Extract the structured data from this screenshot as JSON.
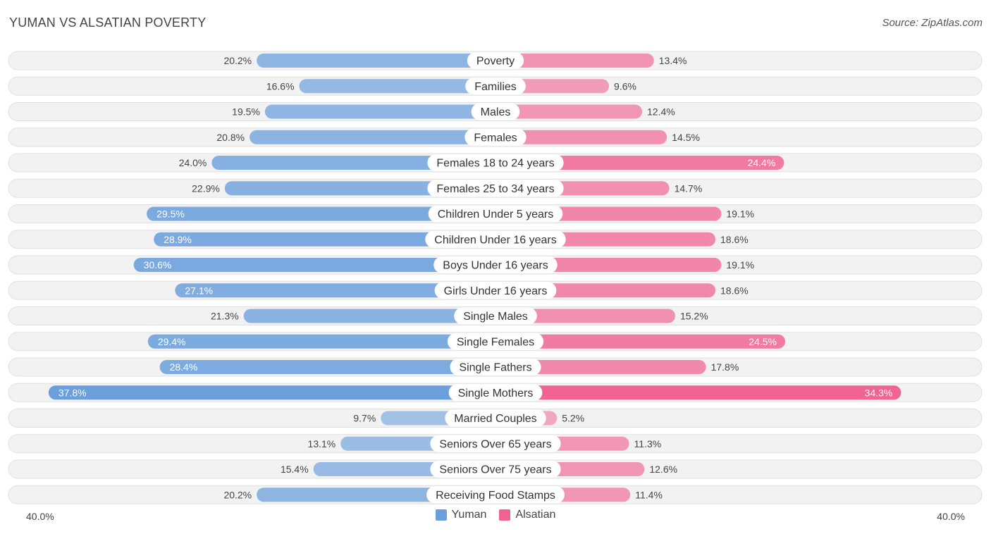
{
  "chart_data": {
    "type": "bar",
    "orientation": "horizontal-diverging",
    "title": "YUMAN VS ALSATIAN POVERTY",
    "source": "Source: ZipAtlas.com",
    "categories": [
      "Poverty",
      "Families",
      "Males",
      "Females",
      "Females 18 to 24 years",
      "Females 25 to 34 years",
      "Children Under 5 years",
      "Children Under 16 years",
      "Boys Under 16 years",
      "Girls Under 16 years",
      "Single Males",
      "Single Females",
      "Single Fathers",
      "Single Mothers",
      "Married Couples",
      "Seniors Over 65 years",
      "Seniors Over 75 years",
      "Receiving Food Stamps"
    ],
    "series": [
      {
        "name": "Yuman",
        "side": "left",
        "color": "#6a9fdc",
        "values": [
          20.2,
          16.6,
          19.5,
          20.8,
          24.0,
          22.9,
          29.5,
          28.9,
          30.6,
          27.1,
          21.3,
          29.4,
          28.4,
          37.8,
          9.7,
          13.1,
          15.4,
          20.2
        ],
        "labels": [
          "20.2%",
          "16.6%",
          "19.5%",
          "20.8%",
          "24.0%",
          "22.9%",
          "29.5%",
          "28.9%",
          "30.6%",
          "27.1%",
          "21.3%",
          "29.4%",
          "28.4%",
          "37.8%",
          "9.7%",
          "13.1%",
          "15.4%",
          "20.2%"
        ]
      },
      {
        "name": "Alsatian",
        "side": "right",
        "color": "#f06292",
        "values": [
          13.4,
          9.6,
          12.4,
          14.5,
          24.4,
          14.7,
          19.1,
          18.6,
          19.1,
          18.6,
          15.2,
          24.5,
          17.8,
          34.3,
          5.2,
          11.3,
          12.6,
          11.4
        ],
        "labels": [
          "13.4%",
          "9.6%",
          "12.4%",
          "14.5%",
          "24.4%",
          "14.7%",
          "19.1%",
          "18.6%",
          "19.1%",
          "18.6%",
          "15.2%",
          "24.5%",
          "17.8%",
          "34.3%",
          "5.2%",
          "11.3%",
          "12.6%",
          "11.4%"
        ]
      }
    ],
    "xlim": [
      0,
      40
    ],
    "axis_min_label": "40.0%",
    "axis_max_label": "40.0%",
    "legend_position": "bottom-center"
  }
}
